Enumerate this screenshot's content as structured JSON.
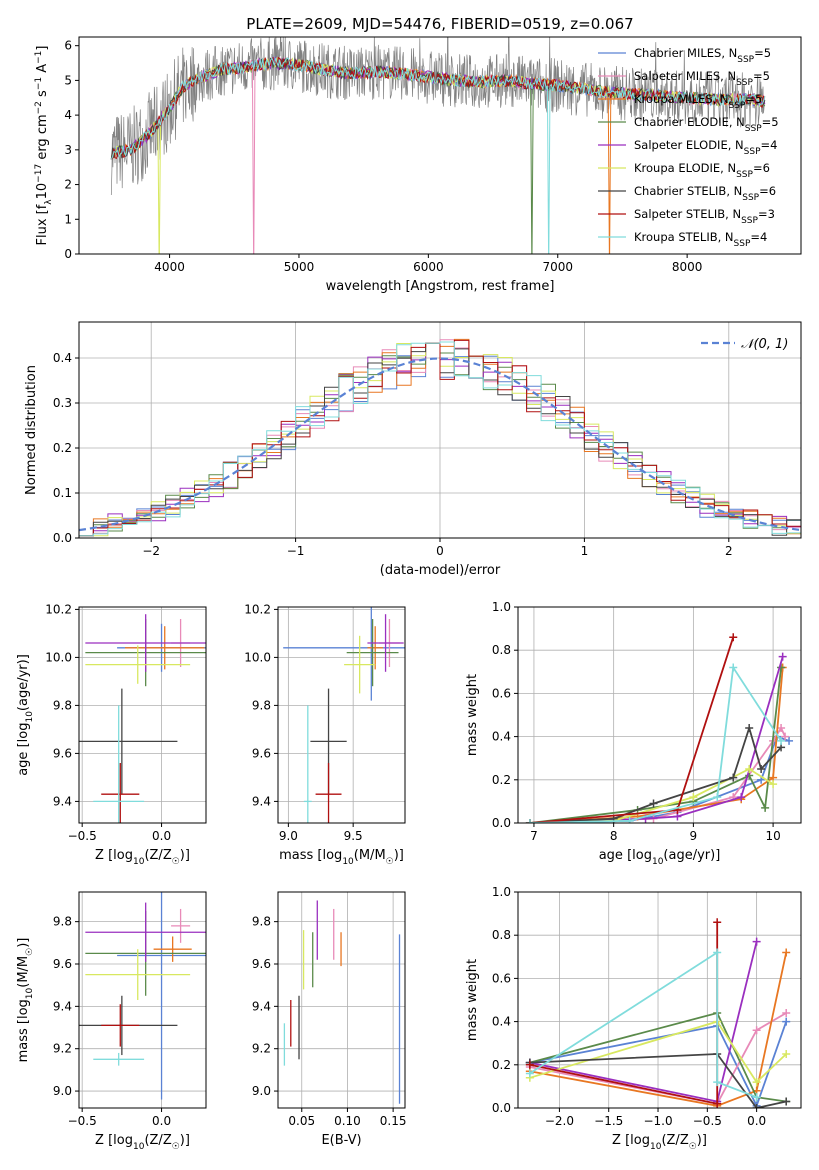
{
  "figure_title": "PLATE=2609, MJD=54476, FIBERID=0519, z=0.067",
  "models": [
    {
      "label": "Chabrier MILES, N",
      "n": "5",
      "color": "#5a82d4"
    },
    {
      "label": "Salpeter MILES, N",
      "n": "5",
      "color": "#e88ab8"
    },
    {
      "label": "Kroupa MILES, N",
      "n": "5",
      "color": "#e87722"
    },
    {
      "label": "Chabrier ELODIE, N",
      "n": "5",
      "color": "#5a8a4a"
    },
    {
      "label": "Salpeter ELODIE, N",
      "n": "4",
      "color": "#9a2fbf"
    },
    {
      "label": "Kroupa ELODIE, N",
      "n": "6",
      "color": "#d8e860"
    },
    {
      "label": "Chabrier STELIB, N",
      "n": "6",
      "color": "#444444"
    },
    {
      "label": "Salpeter STELIB, N",
      "n": "3",
      "color": "#b01010"
    },
    {
      "label": "Kroupa STELIB, N",
      "n": "4",
      "color": "#80dcdc"
    }
  ],
  "legend_subscript": "SSP",
  "chart_data": [
    {
      "id": "spectrum",
      "type": "line",
      "xlabel": "wavelength [Angstrom, rest frame]",
      "ylabel": "Flux [f_λ 10^-17 erg cm^-2 s^-1 A^-1]",
      "xlim": [
        3300,
        8880
      ],
      "ylim": [
        0,
        6.25
      ],
      "xticks": [
        4000,
        5000,
        6000,
        7000,
        8000
      ],
      "yticks": [
        0,
        1,
        2,
        3,
        4,
        5,
        6
      ],
      "continuum_x": [
        3550,
        3700,
        3850,
        4000,
        4100,
        4250,
        4400,
        4600,
        4800,
        5000,
        5200,
        5400,
        5600,
        5800,
        6000,
        6200,
        6400,
        6600,
        6800,
        7000,
        7200,
        7400,
        7600,
        7800,
        8000,
        8200,
        8400,
        8600
      ],
      "continuum_y": [
        2.9,
        3.0,
        3.5,
        4.2,
        4.8,
        5.1,
        5.3,
        5.4,
        5.5,
        5.45,
        5.3,
        5.2,
        5.25,
        5.2,
        5.1,
        5.0,
        4.95,
        5.0,
        4.9,
        4.85,
        4.75,
        4.65,
        4.6,
        4.55,
        4.5,
        4.45,
        4.45,
        4.4
      ],
      "data_color": "#808080"
    },
    {
      "id": "residuals",
      "type": "histogram",
      "xlabel": "(data-model)/error",
      "ylabel": "Normed distribution",
      "xlim": [
        -2.5,
        2.5
      ],
      "ylim": [
        0,
        0.48
      ],
      "xticks": [
        -2,
        -1,
        0,
        1,
        2
      ],
      "yticks": [
        0,
        0.1,
        0.2,
        0.3,
        0.4
      ],
      "bin_width": 0.1,
      "gaussian_label": "𝒩(0, 1)",
      "gaussian_color": "#5a82d4"
    },
    {
      "id": "age_vs_Z",
      "type": "scatter",
      "xlabel": "Z [log10(Z/Z☉)]",
      "ylabel": "age [log10(age/yr)]",
      "xlim": [
        -0.52,
        0.28
      ],
      "ylim": [
        9.31,
        10.21
      ],
      "xticks": [
        -0.5,
        0.0
      ],
      "xtick_labels": [
        "−0.5",
        "0.0"
      ],
      "yticks": [
        9.4,
        9.6,
        9.8,
        10.0,
        10.2
      ],
      "points": [
        {
          "x": 0.0,
          "y": 10.04,
          "xerr": 0.28,
          "yerr": 0.1
        },
        {
          "x": 0.12,
          "y": 10.06,
          "xerr": 0.06,
          "yerr": 0.1
        },
        {
          "x": 0.02,
          "y": 10.04,
          "xerr": 0.25,
          "yerr": 0.09
        },
        {
          "x": -0.1,
          "y": 10.02,
          "xerr": 0.38,
          "yerr": 0.14
        },
        {
          "x": -0.1,
          "y": 10.06,
          "xerr": 0.38,
          "yerr": 0.12
        },
        {
          "x": -0.15,
          "y": 9.97,
          "xerr": 0.33,
          "yerr": 0.08
        },
        {
          "x": -0.25,
          "y": 9.65,
          "xerr": 0.35,
          "yerr": 0.22
        },
        {
          "x": -0.26,
          "y": 9.43,
          "xerr": 0.12,
          "yerr": 0.13
        },
        {
          "x": -0.27,
          "y": 9.4,
          "xerr": 0.16,
          "yerr": 0.4
        }
      ]
    },
    {
      "id": "age_vs_mass",
      "type": "scatter",
      "xlabel": "mass [log10(M/M☉)]",
      "ylabel": "",
      "xlim": [
        8.92,
        9.9
      ],
      "ylim": [
        9.31,
        10.21
      ],
      "xticks": [
        9.0,
        9.5
      ],
      "xtick_labels": [
        "9.0",
        "9.5"
      ],
      "yticks": [
        9.4,
        9.6,
        9.8,
        10.0,
        10.2
      ],
      "points": [
        {
          "x": 9.64,
          "y": 10.04,
          "xerr": 0.68,
          "yerr": 0.22
        },
        {
          "x": 9.78,
          "y": 10.06,
          "xerr": 0.08,
          "yerr": 0.1
        },
        {
          "x": 9.67,
          "y": 10.04,
          "xerr": 0.06,
          "yerr": 0.09
        },
        {
          "x": 9.65,
          "y": 10.02,
          "xerr": 0.2,
          "yerr": 0.14
        },
        {
          "x": 9.75,
          "y": 10.06,
          "xerr": 0.14,
          "yerr": 0.12
        },
        {
          "x": 9.55,
          "y": 9.97,
          "xerr": 0.12,
          "yerr": 0.12
        },
        {
          "x": 9.31,
          "y": 9.65,
          "xerr": 0.14,
          "yerr": 0.22
        },
        {
          "x": 9.31,
          "y": 9.43,
          "xerr": 0.1,
          "yerr": 0.13
        },
        {
          "x": 9.15,
          "y": 9.4,
          "xerr": 0.03,
          "yerr": 0.4
        }
      ]
    },
    {
      "id": "weight_vs_age",
      "type": "line",
      "xlabel": "age [log10(age/yr)]",
      "ylabel": "mass weight",
      "xlim": [
        6.8,
        10.35
      ],
      "ylim": [
        0,
        1.0
      ],
      "xticks": [
        7,
        8,
        9,
        10
      ],
      "yticks": [
        0.0,
        0.2,
        0.4,
        0.6,
        0.8,
        1.0
      ],
      "series": [
        {
          "x": [
            6.95,
            8.2,
            8.8,
            9.85,
            10.05,
            10.2
          ],
          "y": [
            0.0,
            0.01,
            0.05,
            0.2,
            0.4,
            0.38
          ]
        },
        {
          "x": [
            6.95,
            8.5,
            9.5,
            10.0,
            10.1,
            10.15
          ],
          "y": [
            0.0,
            0.02,
            0.12,
            0.38,
            0.44,
            0.4
          ]
        },
        {
          "x": [
            6.95,
            8.3,
            9.6,
            10.0,
            10.12
          ],
          "y": [
            0.0,
            0.03,
            0.11,
            0.21,
            0.72
          ]
        },
        {
          "x": [
            6.95,
            8.3,
            9.0,
            9.7,
            9.9,
            10.1
          ],
          "y": [
            0.0,
            0.06,
            0.1,
            0.22,
            0.07,
            0.72
          ]
        },
        {
          "x": [
            6.95,
            8.4,
            8.8,
            9.6,
            10.12
          ],
          "y": [
            0.0,
            0.02,
            0.03,
            0.12,
            0.77
          ]
        },
        {
          "x": [
            6.95,
            8.0,
            9.0,
            9.7,
            10.0
          ],
          "y": [
            0.0,
            0.01,
            0.12,
            0.25,
            0.18
          ]
        },
        {
          "x": [
            6.95,
            8.0,
            8.5,
            9.5,
            9.7,
            9.85,
            10.1
          ],
          "y": [
            0.0,
            0.02,
            0.09,
            0.21,
            0.44,
            0.25,
            0.35
          ]
        },
        {
          "x": [
            6.95,
            8.8,
            9.5
          ],
          "y": [
            0.0,
            0.06,
            0.86
          ]
        },
        {
          "x": [
            6.95,
            8.2,
            9.3,
            9.5,
            10.1
          ],
          "y": [
            0.0,
            0.01,
            0.12,
            0.72,
            0.38
          ]
        }
      ]
    },
    {
      "id": "mass_vs_Z",
      "type": "scatter",
      "xlabel": "Z [log10(Z/Z☉)]",
      "ylabel": "mass [log10(M/M☉)]",
      "xlim": [
        -0.52,
        0.28
      ],
      "ylim": [
        8.92,
        9.94
      ],
      "xticks": [
        -0.5,
        0.0
      ],
      "xtick_labels": [
        "−0.5",
        "0.0"
      ],
      "yticks": [
        9.0,
        9.2,
        9.4,
        9.6,
        9.8
      ],
      "points": [
        {
          "x": 0.0,
          "y": 9.64,
          "xerr": 0.28,
          "yerr": 0.68
        },
        {
          "x": 0.12,
          "y": 9.78,
          "xerr": 0.06,
          "yerr": 0.08
        },
        {
          "x": 0.07,
          "y": 9.67,
          "xerr": 0.12,
          "yerr": 0.06
        },
        {
          "x": -0.1,
          "y": 9.65,
          "xerr": 0.38,
          "yerr": 0.2
        },
        {
          "x": -0.1,
          "y": 9.75,
          "xerr": 0.38,
          "yerr": 0.14
        },
        {
          "x": -0.15,
          "y": 9.55,
          "xerr": 0.33,
          "yerr": 0.12
        },
        {
          "x": -0.25,
          "y": 9.31,
          "xerr": 0.35,
          "yerr": 0.14
        },
        {
          "x": -0.26,
          "y": 9.31,
          "xerr": 0.12,
          "yerr": 0.1
        },
        {
          "x": -0.27,
          "y": 9.15,
          "xerr": 0.16,
          "yerr": 0.03
        }
      ]
    },
    {
      "id": "mass_vs_ebv",
      "type": "scatter",
      "xlabel": "E(B-V)",
      "ylabel": "",
      "xlim": [
        0.024,
        0.163
      ],
      "ylim": [
        8.92,
        9.94
      ],
      "xticks": [
        0.05,
        0.1,
        0.15
      ],
      "xtick_labels": [
        "0.05",
        "0.10",
        "0.15"
      ],
      "yticks": [
        9.0,
        9.2,
        9.4,
        9.6,
        9.8
      ],
      "points": [
        {
          "x": 0.157,
          "y": 9.34,
          "yerr": 0.4
        },
        {
          "x": 0.085,
          "y": 9.74,
          "yerr": 0.12
        },
        {
          "x": 0.093,
          "y": 9.67,
          "yerr": 0.08
        },
        {
          "x": 0.062,
          "y": 9.62,
          "yerr": 0.13
        },
        {
          "x": 0.067,
          "y": 9.76,
          "yerr": 0.14
        },
        {
          "x": 0.052,
          "y": 9.62,
          "yerr": 0.14
        },
        {
          "x": 0.047,
          "y": 9.3,
          "yerr": 0.15
        },
        {
          "x": 0.038,
          "y": 9.32,
          "yerr": 0.11
        },
        {
          "x": 0.031,
          "y": 9.22,
          "yerr": 0.1
        }
      ]
    },
    {
      "id": "weight_vs_Z",
      "type": "line",
      "xlabel": "Z [log10(Z/Z☉)]",
      "ylabel": "mass weight",
      "xlim": [
        -2.42,
        0.45
      ],
      "ylim": [
        0,
        1.0
      ],
      "xticks": [
        -2.0,
        -1.5,
        -1.0,
        -0.5,
        0.0
      ],
      "xtick_labels": [
        "−2.0",
        "−1.5",
        "−1.0",
        "−0.5",
        "0.0"
      ],
      "yticks": [
        0.0,
        0.2,
        0.4,
        0.6,
        0.8,
        1.0
      ],
      "series": [
        {
          "x": [
            -2.3,
            -0.4,
            0.0,
            0.3
          ],
          "y": [
            0.21,
            0.38,
            0.01,
            0.4
          ]
        },
        {
          "x": [
            -2.3,
            -0.4,
            0.0,
            0.3
          ],
          "y": [
            0.19,
            0.02,
            0.36,
            0.44
          ]
        },
        {
          "x": [
            -2.3,
            -0.4,
            0.0,
            0.3
          ],
          "y": [
            0.17,
            0.01,
            0.08,
            0.72
          ]
        },
        {
          "x": [
            -2.3,
            -0.4,
            0.0,
            0.3
          ],
          "y": [
            0.21,
            0.44,
            0.05,
            0.03
          ]
        },
        {
          "x": [
            -2.3,
            -0.4,
            0.0
          ],
          "y": [
            0.21,
            0.03,
            0.77
          ]
        },
        {
          "x": [
            -2.3,
            -0.4,
            0.0,
            0.3
          ],
          "y": [
            0.14,
            0.4,
            0.12,
            0.25
          ]
        },
        {
          "x": [
            -2.3,
            -0.4,
            0.0,
            0.3
          ],
          "y": [
            0.21,
            0.25,
            0.0,
            0.03
          ]
        },
        {
          "x": [
            -2.3,
            -0.4,
            -0.4
          ],
          "y": [
            0.2,
            0.02,
            0.86
          ]
        },
        {
          "x": [
            -2.3,
            -0.4,
            -0.4,
            0.0
          ],
          "y": [
            0.16,
            0.72,
            0.12,
            0.05
          ]
        }
      ]
    }
  ]
}
